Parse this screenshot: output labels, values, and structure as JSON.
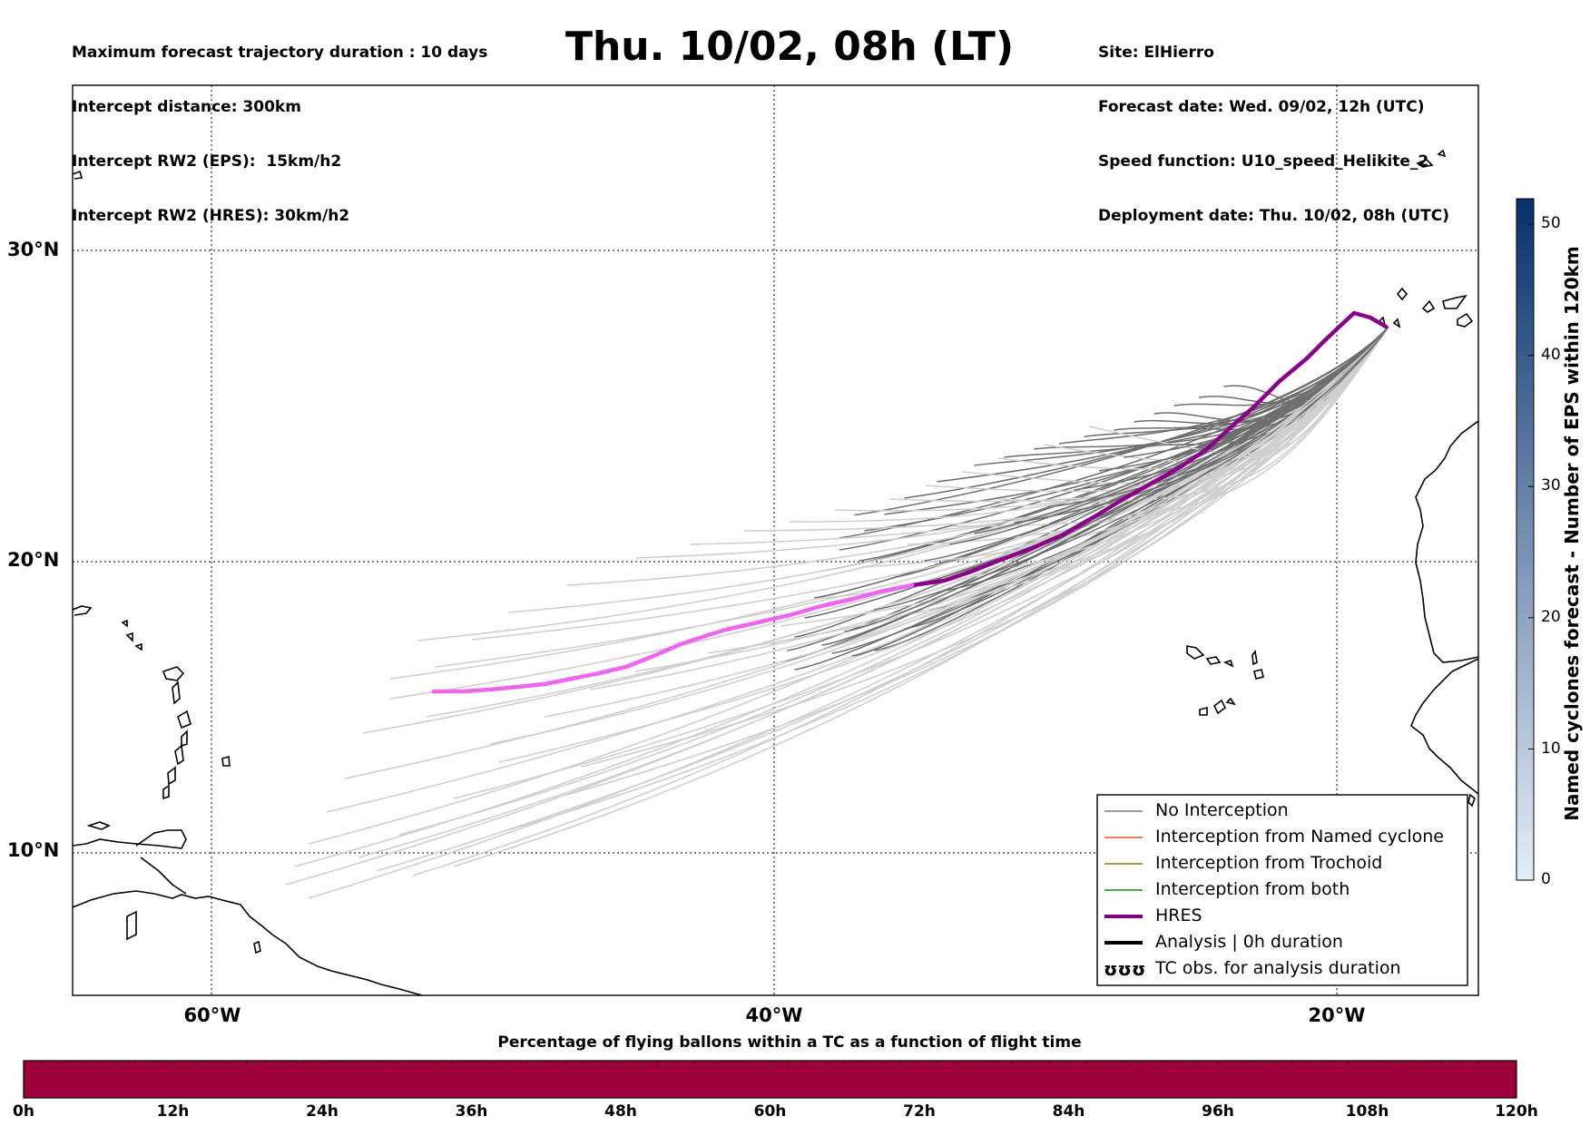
{
  "header": {
    "info_left": [
      "Maximum forecast trajectory duration : 10 days",
      "Intercept distance: 300km",
      "Intercept RW2 (EPS):  15km/h2",
      "Intercept RW2 (HRES): 30km/h2"
    ],
    "title": "Thu. 10/02, 08h (LT)",
    "info_right": [
      "Site: ElHierro",
      "Forecast date: Wed. 09/02, 12h (UTC)",
      "Speed function: U10_speed_Helikite_2",
      "Deployment date: Thu. 10/02, 08h (UTC)"
    ]
  },
  "map": {
    "lat_labels": [
      "30°N",
      "20°N",
      "10°N"
    ],
    "lon_labels": [
      "60°W",
      "40°W",
      "20°W"
    ]
  },
  "legend": {
    "items": [
      {
        "label": "No Interception",
        "color": "#808080",
        "style": "thin"
      },
      {
        "label": "Interception from Named cyclone",
        "color": "#e8501e",
        "style": "thin"
      },
      {
        "label": "Interception from Trochoid",
        "color": "#7a7a10",
        "style": "thin"
      },
      {
        "label": "Interception from both",
        "color": "#1a8a1a",
        "style": "thin"
      },
      {
        "label": "HRES",
        "color": "#800080",
        "style": "thick"
      },
      {
        "label": "Analysis | 0h duration",
        "color": "#000000",
        "style": "thick"
      },
      {
        "label": "TC obs. for analysis duration",
        "color": "#000000",
        "style": "symbol",
        "symbol": "ʊʊʊ"
      }
    ]
  },
  "colorbar": {
    "title": "Named cyclones forecast - Number of EPS within 120km",
    "ticks": [
      "0",
      "10",
      "20",
      "30",
      "40",
      "50"
    ],
    "color_low": "#e4eef8",
    "color_high": "#08306b"
  },
  "bottom_bar": {
    "title": "Percentage of flying ballons within a TC as a function of flight time",
    "color": "#9e0039",
    "labels": [
      "0h",
      "12h",
      "24h",
      "36h",
      "48h",
      "60h",
      "72h",
      "84h",
      "96h",
      "108h",
      "120h"
    ]
  },
  "colors": {
    "eps_dark": "#6e6e6e",
    "eps_light": "#cfcfcf",
    "hres_dark": "#8b008b",
    "hres_light": "#ee66ee"
  }
}
